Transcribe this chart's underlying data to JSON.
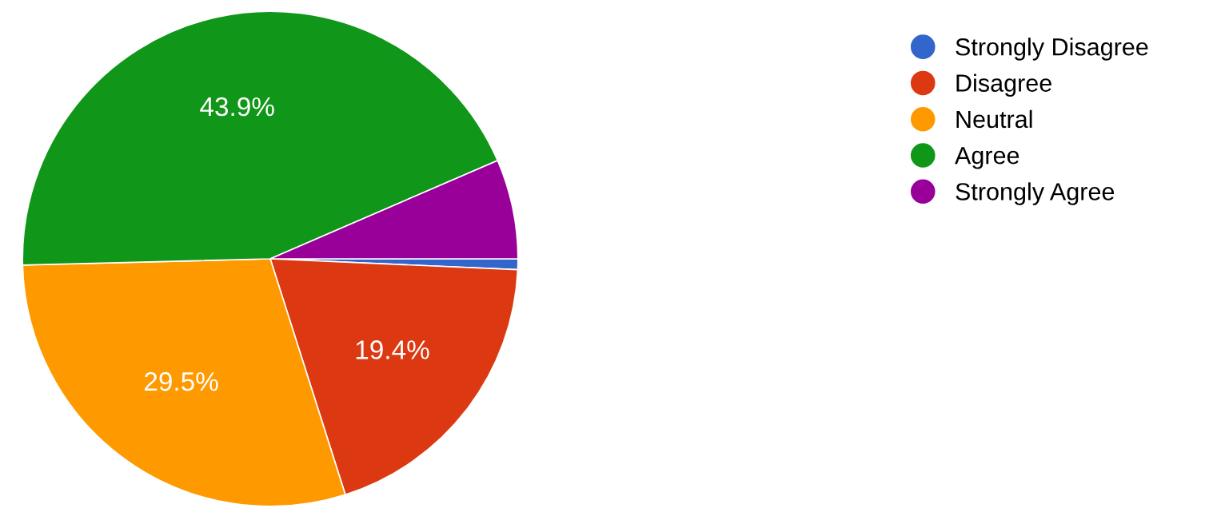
{
  "chart_data": {
    "type": "pie",
    "categories": [
      "Strongly Disagree",
      "Disagree",
      "Neutral",
      "Agree",
      "Strongly Agree"
    ],
    "values": [
      0.7,
      19.4,
      29.5,
      43.9,
      6.5
    ],
    "colors": [
      "#3366cc",
      "#dc3912",
      "#ff9900",
      "#109618",
      "#990099"
    ],
    "value_labels": [
      null,
      "19.4%",
      "29.5%",
      "43.9%",
      null
    ],
    "legend": "right"
  }
}
